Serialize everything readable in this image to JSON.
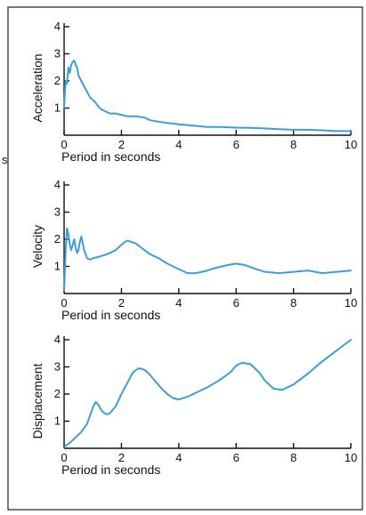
{
  "figure": {
    "side_mark": "s"
  },
  "chart_data": [
    {
      "type": "line",
      "ylabel": "Acceleration",
      "xlabel": "Period in seconds",
      "xlim": [
        0,
        10
      ],
      "ylim": [
        0,
        4
      ],
      "xticks": [
        "0",
        "2",
        "4",
        "6",
        "8",
        "10"
      ],
      "yticks": [
        "1",
        "2",
        "3",
        "4"
      ],
      "color": "#3a9fd8",
      "x": [
        0,
        0.05,
        0.1,
        0.15,
        0.2,
        0.25,
        0.3,
        0.35,
        0.4,
        0.45,
        0.5,
        0.6,
        0.7,
        0.8,
        0.9,
        1.0,
        1.1,
        1.2,
        1.3,
        1.4,
        1.5,
        1.6,
        1.8,
        2.0,
        2.2,
        2.5,
        2.8,
        3.0,
        3.3,
        3.6,
        4.0,
        4.5,
        5.0,
        5.5,
        6.0,
        6.5,
        7.0,
        7.5,
        8.0,
        8.5,
        9.0,
        9.5,
        10.0
      ],
      "y": [
        1.0,
        2.0,
        1.9,
        2.5,
        2.3,
        2.6,
        2.7,
        2.75,
        2.6,
        2.5,
        2.2,
        2.0,
        1.8,
        1.6,
        1.4,
        1.3,
        1.2,
        1.05,
        0.95,
        0.9,
        0.85,
        0.8,
        0.8,
        0.75,
        0.7,
        0.7,
        0.65,
        0.55,
        0.5,
        0.45,
        0.4,
        0.35,
        0.3,
        0.3,
        0.28,
        0.27,
        0.25,
        0.22,
        0.2,
        0.2,
        0.18,
        0.15,
        0.15
      ]
    },
    {
      "type": "line",
      "ylabel": "Velocity",
      "xlabel": "Period in seconds",
      "xlim": [
        0,
        10
      ],
      "ylim": [
        0,
        4
      ],
      "xticks": [
        "0",
        "2",
        "4",
        "6",
        "8",
        "10"
      ],
      "yticks": [
        "1",
        "2",
        "3",
        "4"
      ],
      "color": "#3a9fd8",
      "x": [
        0,
        0.05,
        0.1,
        0.15,
        0.2,
        0.25,
        0.3,
        0.35,
        0.4,
        0.45,
        0.5,
        0.55,
        0.6,
        0.7,
        0.8,
        0.9,
        1.0,
        1.2,
        1.5,
        1.8,
        2.0,
        2.2,
        2.5,
        2.8,
        3.0,
        3.3,
        3.6,
        4.0,
        4.3,
        4.6,
        5.0,
        5.3,
        5.7,
        6.0,
        6.3,
        6.7,
        7.0,
        7.5,
        8.0,
        8.5,
        9.0,
        9.5,
        10.0
      ],
      "y": [
        0.1,
        1.5,
        2.4,
        2.2,
        1.8,
        1.6,
        1.8,
        2.0,
        1.7,
        1.5,
        1.6,
        1.9,
        2.1,
        1.6,
        1.3,
        1.25,
        1.3,
        1.35,
        1.45,
        1.6,
        1.8,
        1.95,
        1.85,
        1.6,
        1.45,
        1.3,
        1.1,
        0.9,
        0.75,
        0.75,
        0.85,
        0.95,
        1.05,
        1.1,
        1.05,
        0.9,
        0.8,
        0.75,
        0.8,
        0.85,
        0.75,
        0.8,
        0.85
      ]
    },
    {
      "type": "line",
      "ylabel": "Displacement",
      "xlabel": "Period in seconds",
      "xlim": [
        0,
        10
      ],
      "ylim": [
        0,
        4
      ],
      "xticks": [
        "0",
        "2",
        "4",
        "6",
        "8",
        "10"
      ],
      "yticks": [
        "1",
        "2",
        "3",
        "4"
      ],
      "color": "#3a9fd8",
      "x": [
        0,
        0.2,
        0.4,
        0.6,
        0.8,
        0.9,
        1.0,
        1.1,
        1.2,
        1.3,
        1.4,
        1.5,
        1.6,
        1.8,
        2.0,
        2.2,
        2.4,
        2.6,
        2.8,
        3.0,
        3.2,
        3.4,
        3.6,
        3.8,
        4.0,
        4.3,
        4.6,
        5.0,
        5.4,
        5.8,
        6.0,
        6.2,
        6.5,
        6.8,
        7.0,
        7.3,
        7.6,
        8.0,
        8.5,
        9.0,
        9.5,
        10.0
      ],
      "y": [
        0.05,
        0.2,
        0.4,
        0.6,
        0.9,
        1.2,
        1.5,
        1.7,
        1.6,
        1.4,
        1.3,
        1.25,
        1.3,
        1.55,
        2.0,
        2.4,
        2.8,
        2.95,
        2.9,
        2.7,
        2.45,
        2.2,
        2.0,
        1.85,
        1.8,
        1.9,
        2.05,
        2.25,
        2.5,
        2.8,
        3.05,
        3.15,
        3.1,
        2.8,
        2.5,
        2.2,
        2.15,
        2.35,
        2.75,
        3.2,
        3.6,
        4.0
      ]
    }
  ]
}
